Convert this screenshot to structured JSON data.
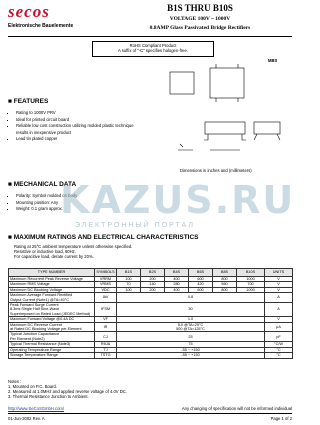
{
  "header": {
    "logo": "secos",
    "subtitle": "Elektronische Bauelemente",
    "title": "B1S THRU B10S",
    "voltage": "VOLTAGE 100V ~ 1000V",
    "description": "0.8AMP Glass Passivated Bridge Rectifiers"
  },
  "rohs": {
    "line1": "RoHS Compliant Product",
    "line2": "A suffix of \"-C\" specifies halogen-free."
  },
  "features": {
    "title": "FEATURES",
    "items": [
      "Rating to 1000V PRV",
      "Ideal for printed circuit board",
      "Reliable low cost construction utilizing molded plastic technique results in inexpensive product",
      "Lead tin plated copper"
    ]
  },
  "package": {
    "name": "MBS",
    "note": "Dimensions in inches and (millimeters)"
  },
  "mechanical": {
    "title": "MECHANICAL DATA",
    "items": [
      "Polarity: Symbol molded on body",
      "Mounting position: Any",
      "Weight: 0.1 gram approx."
    ]
  },
  "watermark": {
    "main": "KAZUS.RU",
    "sub": "ЭЛЕКТРОННЫЙ ПОРТАЛ"
  },
  "ratings": {
    "title": "MAXIMUM RATINGS AND ELECTRICAL CHARACTERISTICS",
    "notes": [
      "Rating at 25°C ambient temperature unless otherwise specified.",
      "Resistive or inductive load, 60Hz.",
      "For capacitive load, derate current by 20%."
    ]
  },
  "table": {
    "header": [
      "TYPE NUMBER",
      "SYMBOLS",
      "B1S",
      "B2S",
      "B4S",
      "B6S",
      "B8S",
      "B10S",
      "UNITS"
    ],
    "rows": [
      [
        "Maximum Recurrent Peak Reverse Voltage",
        "VRRM",
        "100",
        "200",
        "400",
        "600",
        "800",
        "1000",
        "V"
      ],
      [
        "Maximum RMS Voltage",
        "VRMS",
        "70",
        "140",
        "280",
        "420",
        "560",
        "700",
        "V"
      ],
      [
        "Maximum DC Blocking Voltage",
        "VDC",
        "100",
        "200",
        "400",
        "600",
        "800",
        "1000",
        "V"
      ],
      [
        [
          "Maximum Average Forward Rectified",
          "Output Current (Note1) @TA=40°C"
        ],
        "IAV",
        "0.8",
        "A"
      ],
      [
        [
          "Peak Forward Surge Current",
          "8.3ms Single Half Sine-Wave",
          "Superimposed on Rated Load (JEDEC Method)"
        ],
        "IFSM",
        "30",
        "A"
      ],
      [
        "Maximum Forward Voltage @0.4A DC",
        "VF",
        "1.0",
        "V"
      ],
      [
        [
          "Maximum DC Reverse Current",
          "at Rated DC Blocking Voltage per Element"
        ],
        "IR",
        [
          "5.0   @TA=25°C",
          "500   @TA=125°C"
        ],
        "μA"
      ],
      [
        [
          "Typical Junction Capacitance",
          "Per Element (Note2)"
        ],
        "CJ",
        "25",
        "pF"
      ],
      [
        "Typical Thermal Resistance (Note3)",
        "RθJA",
        "75",
        "°C/W"
      ],
      [
        "Operating Temperature Range",
        "TJ",
        "-55 ~ +150",
        "°C"
      ],
      [
        "Storage Temperature Range",
        "TSTG",
        "-55 ~ +150",
        "°C"
      ]
    ]
  },
  "notes": {
    "title": "Notes :",
    "items": [
      "1. Mounted on P.C. Board.",
      "2. Measured at 1.0MHz and applied reverse voltage of 4.0V DC.",
      "3. Thermal Resistance Junction to Ambient."
    ]
  },
  "footer": {
    "url": "http://www.SeCoSGmbH.com/",
    "disclaimer": "Any changing of specification will not be informed individual",
    "date": "01-Jun-2002 Rev. A",
    "page": "Page 1 of 2"
  }
}
